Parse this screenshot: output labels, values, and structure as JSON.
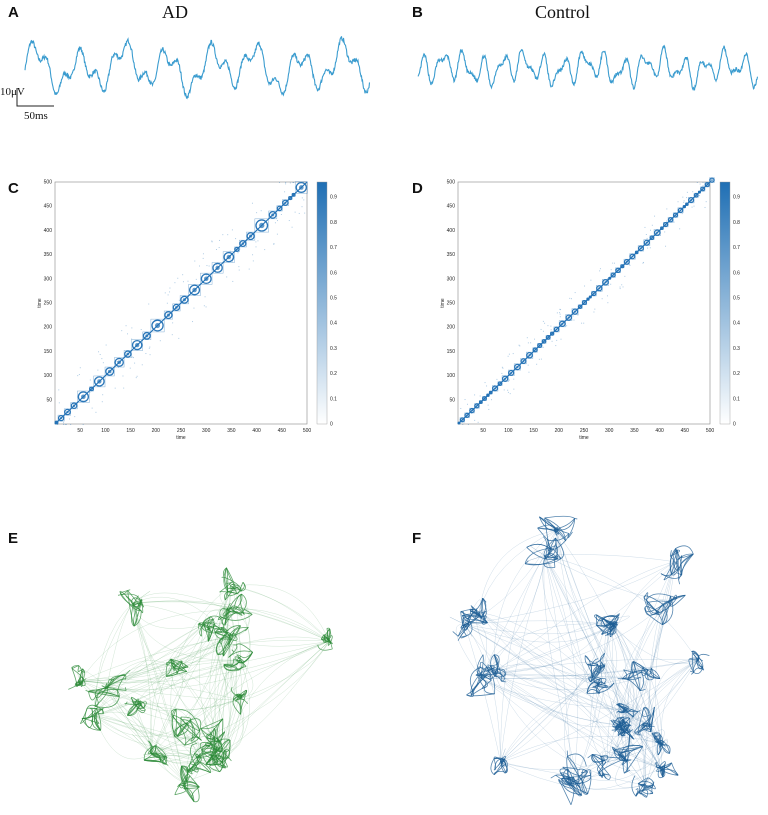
{
  "panels": {
    "A": {
      "letter": "A",
      "title": "AD"
    },
    "B": {
      "letter": "B",
      "title": "Control"
    },
    "C": {
      "letter": "C"
    },
    "D": {
      "letter": "D"
    },
    "E": {
      "letter": "E"
    },
    "F": {
      "letter": "F"
    }
  },
  "scale_bar": {
    "voltage": "10μV",
    "time": "50ms"
  },
  "colors": {
    "eeg": "#3b9ccf",
    "matrix": "#1f6fb4",
    "ad_network": "#2e8b3a",
    "control_network": "#1f5f95"
  },
  "matrix_axes": {
    "xlabel": "time",
    "ylabel": "time",
    "C": {
      "xticks": [
        50,
        100,
        150,
        200,
        250,
        300,
        350,
        400,
        450,
        500
      ],
      "yticks": [
        50,
        100,
        150,
        200,
        250,
        300,
        350,
        400,
        450,
        500
      ],
      "cticks": [
        "0",
        "0.1",
        "0.2",
        "0.3",
        "0.4",
        "0.5",
        "0.6",
        "0.7",
        "0.8",
        "0.9"
      ]
    },
    "D": {
      "xticks": [
        50,
        100,
        150,
        200,
        250,
        300,
        350,
        400,
        450,
        500
      ],
      "yticks": [
        50,
        100,
        150,
        200,
        250,
        300,
        350,
        400,
        450,
        500
      ],
      "cticks": [
        "0",
        "0.1",
        "0.2",
        "0.3",
        "0.4",
        "0.5",
        "0.6",
        "0.7",
        "0.8",
        "0.9"
      ]
    }
  }
}
